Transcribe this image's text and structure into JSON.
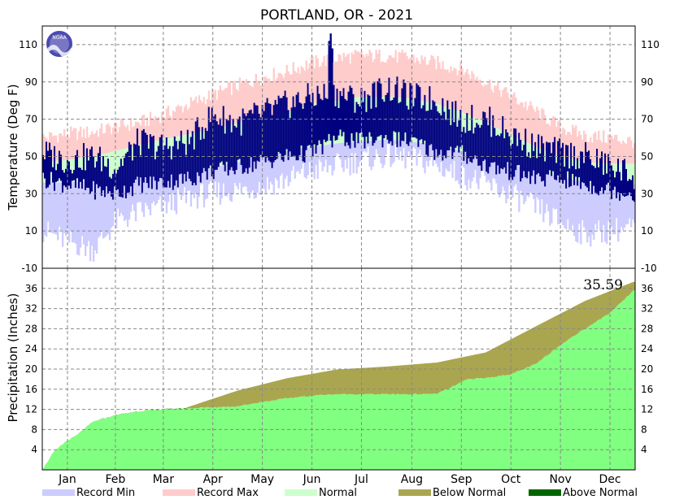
{
  "title": "PORTLAND, OR - 2021",
  "logo_text": "NOAA",
  "chart_data": [
    {
      "type": "area",
      "panel": "temperature",
      "ylabel": "Temperature (Deg F)",
      "ylim": [
        -10,
        120
      ],
      "y_ticks": [
        -10,
        10,
        30,
        50,
        70,
        90,
        110
      ],
      "grid": true,
      "colors": {
        "record_min": "#ccccff",
        "record_max": "#ffcccc",
        "normal": "#ccffcc",
        "observed": "#000080"
      },
      "anchor_days": [
        1,
        15,
        32,
        46,
        60,
        74,
        91,
        105,
        121,
        135,
        152,
        166,
        182,
        196,
        213,
        227,
        244,
        258,
        274,
        288,
        305,
        319,
        335,
        349,
        365
      ],
      "record_max_anchors": [
        60,
        62,
        63,
        66,
        68,
        72,
        78,
        83,
        88,
        92,
        96,
        100,
        103,
        104,
        104,
        103,
        100,
        97,
        90,
        83,
        74,
        66,
        61,
        60,
        58
      ],
      "record_min_anchors": [
        10,
        5,
        0,
        15,
        20,
        23,
        28,
        30,
        32,
        34,
        38,
        42,
        45,
        48,
        50,
        49,
        45,
        40,
        35,
        30,
        22,
        15,
        8,
        10,
        12
      ],
      "normal_high_anchors": [
        47,
        48,
        50,
        53,
        56,
        59,
        62,
        64,
        68,
        71,
        74,
        78,
        80,
        82,
        82,
        81,
        78,
        74,
        68,
        62,
        55,
        50,
        47,
        46,
        46
      ],
      "normal_low_anchors": [
        36,
        36,
        37,
        38,
        39,
        40,
        42,
        44,
        47,
        50,
        53,
        55,
        57,
        58,
        59,
        58,
        56,
        53,
        49,
        46,
        42,
        39,
        36,
        35,
        35
      ],
      "observed_high_anchors": [
        52,
        48,
        50,
        44,
        58,
        55,
        58,
        72,
        68,
        73,
        78,
        82,
        84,
        80,
        87,
        82,
        80,
        70,
        70,
        62,
        55,
        52,
        50,
        45,
        40
      ],
      "observed_low_anchors": [
        38,
        35,
        32,
        30,
        35,
        36,
        38,
        42,
        44,
        47,
        50,
        52,
        60,
        58,
        60,
        58,
        52,
        52,
        45,
        42,
        38,
        38,
        35,
        32,
        30
      ],
      "observed_extremes": [
        {
          "day": 178,
          "high": 116
        },
        {
          "day": 179,
          "high": 108
        },
        {
          "day": 177,
          "high": 112
        }
      ]
    },
    {
      "type": "area",
      "panel": "precipitation",
      "ylabel": "Precipitation (Inches)",
      "ylim": [
        0,
        40
      ],
      "y_ticks": [
        4,
        8,
        12,
        16,
        20,
        24,
        28,
        32,
        36
      ],
      "grid": true,
      "annotation": "35.59",
      "colors": {
        "observed_fill": "#80ff80",
        "below_normal": "#aaa650",
        "above_normal": "#006600"
      },
      "normal_cumulative": {
        "days": [
          1,
          32,
          60,
          91,
          121,
          152,
          182,
          213,
          244,
          274,
          305,
          335,
          365
        ],
        "values": [
          0.0,
          4.2,
          8.0,
          12.5,
          15.7,
          18.2,
          19.9,
          20.5,
          21.3,
          23.3,
          28.5,
          33.5,
          37.3
        ]
      },
      "observed_cumulative": {
        "days": [
          1,
          8,
          15,
          22,
          32,
          45,
          60,
          75,
          91,
          105,
          121,
          135,
          152,
          170,
          182,
          200,
          213,
          230,
          244,
          253,
          263,
          274,
          290,
          305,
          320,
          335,
          350,
          365
        ],
        "values": [
          0.0,
          3.5,
          5.5,
          6.8,
          9.5,
          10.8,
          11.6,
          12.0,
          12.2,
          12.4,
          12.6,
          13.4,
          14.2,
          14.8,
          15.0,
          15.0,
          15.0,
          15.0,
          15.1,
          16.4,
          18.0,
          18.2,
          19.0,
          21.0,
          24.8,
          28.0,
          31.0,
          35.59
        ]
      }
    }
  ],
  "x_axis": {
    "month_labels": [
      "Jan",
      "Feb",
      "Mar",
      "Apr",
      "May",
      "Jun",
      "Jul",
      "Aug",
      "Sep",
      "Oct",
      "Nov",
      "Dec"
    ],
    "month_start_days": [
      1,
      32,
      60,
      91,
      121,
      152,
      182,
      213,
      244,
      274,
      305,
      335
    ],
    "days_in_year": 365
  },
  "legend": [
    {
      "label": "Record Min",
      "color": "#ccccff"
    },
    {
      "label": "Record Max",
      "color": "#ffcccc"
    },
    {
      "label": "Normal",
      "color": "#ccffcc"
    },
    {
      "label": "Below Normal",
      "color": "#aaa650"
    },
    {
      "label": "Above Normal",
      "color": "#006600"
    }
  ]
}
